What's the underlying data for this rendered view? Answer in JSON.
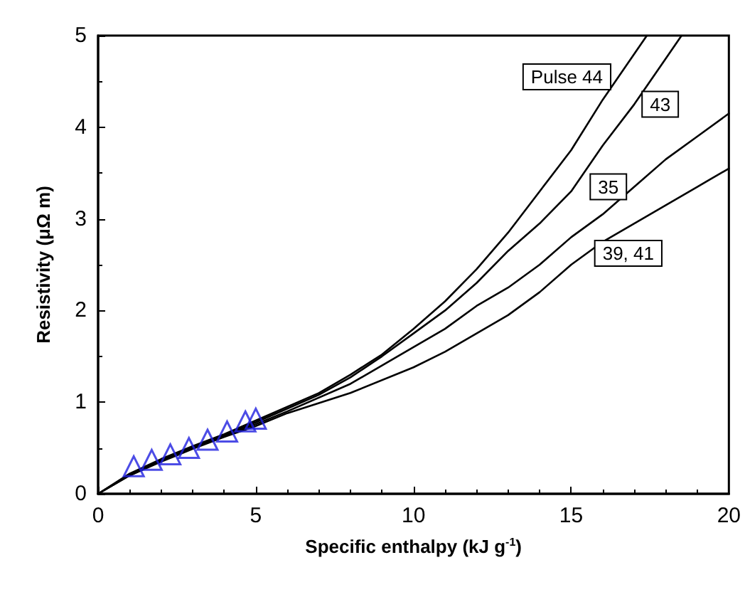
{
  "chart_data": {
    "type": "line",
    "xlabel": "Specific enthalpy (kJ g$^{-1}$)",
    "ylabel": "Resistivity (μΩ m)",
    "xlim": [
      0,
      20
    ],
    "ylim": [
      0,
      5
    ],
    "xticks": [
      0,
      5,
      10,
      15,
      20
    ],
    "yticks": [
      0,
      1,
      2,
      3,
      4,
      5
    ],
    "grid": false,
    "marker": "none",
    "line_style": "solid",
    "series": [
      {
        "name": "Pulse 44",
        "color": "#000000",
        "x": [
          0,
          1,
          2,
          3,
          4,
          5,
          6,
          7,
          8,
          9,
          10,
          11,
          12,
          13,
          14,
          15,
          16,
          17,
          17.4
        ],
        "values": [
          0,
          0.22,
          0.38,
          0.52,
          0.65,
          0.8,
          0.95,
          1.1,
          1.3,
          1.52,
          1.8,
          2.1,
          2.45,
          2.85,
          3.3,
          3.75,
          4.3,
          4.8,
          5.0
        ]
      },
      {
        "name": "43",
        "color": "#000000",
        "x": [
          0,
          1,
          2,
          3,
          4,
          5,
          6,
          7,
          8,
          9,
          10,
          11,
          12,
          13,
          14,
          15,
          16,
          17,
          18,
          18.5
        ],
        "values": [
          0,
          0.21,
          0.37,
          0.51,
          0.64,
          0.78,
          0.93,
          1.08,
          1.27,
          1.5,
          1.75,
          2.0,
          2.3,
          2.65,
          2.95,
          3.3,
          3.8,
          4.25,
          4.75,
          5.0
        ]
      },
      {
        "name": "35",
        "color": "#000000",
        "x": [
          0,
          1,
          2,
          3,
          4,
          5,
          6,
          8,
          10,
          11,
          12,
          13,
          14,
          15,
          16,
          17,
          18,
          19,
          20
        ],
        "values": [
          0,
          0.2,
          0.36,
          0.5,
          0.63,
          0.76,
          0.9,
          1.2,
          1.6,
          1.8,
          2.05,
          2.25,
          2.5,
          2.8,
          3.05,
          3.35,
          3.65,
          3.9,
          4.15
        ]
      },
      {
        "name": "39, 41",
        "color": "#000000",
        "x": [
          0,
          1,
          2,
          3,
          4,
          5,
          6,
          8,
          10,
          11,
          12,
          13,
          14,
          15,
          16,
          17,
          18,
          19,
          20
        ],
        "values": [
          0,
          0.2,
          0.35,
          0.49,
          0.62,
          0.74,
          0.88,
          1.1,
          1.38,
          1.55,
          1.75,
          1.95,
          2.2,
          2.5,
          2.75,
          2.95,
          3.15,
          3.35,
          3.55
        ]
      },
      {
        "type": "scatter",
        "color": "#1f1fe0",
        "marker": "triangle",
        "x": [
          1.13,
          1.7,
          2.29,
          2.88,
          3.47,
          4.09,
          4.67,
          5.0
        ],
        "values": [
          0.3,
          0.37,
          0.43,
          0.5,
          0.59,
          0.68,
          0.79,
          0.82
        ]
      }
    ]
  }
}
